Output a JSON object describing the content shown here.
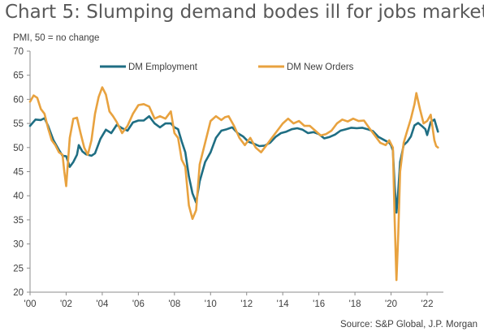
{
  "title": "Chart 5: Slumping demand bodes ill for jobs market",
  "source": "Source: S&P Global, J.P. Morgan",
  "chart_data": {
    "type": "line",
    "ylabel": "PMI, 50 = no change",
    "xlabel": "",
    "ylim": [
      20,
      70
    ],
    "yticks": [
      20,
      25,
      30,
      35,
      40,
      45,
      50,
      55,
      60,
      65,
      70
    ],
    "xlim": [
      2000,
      2022.9
    ],
    "xticks": [
      {
        "label": "'00",
        "x": 2000
      },
      {
        "label": "'02",
        "x": 2002
      },
      {
        "label": "'04",
        "x": 2004
      },
      {
        "label": "'06",
        "x": 2006
      },
      {
        "label": "'08",
        "x": 2008
      },
      {
        "label": "'10",
        "x": 2010
      },
      {
        "label": "'12",
        "x": 2012
      },
      {
        "label": "'14",
        "x": 2014
      },
      {
        "label": "'16",
        "x": 2016
      },
      {
        "label": "'18",
        "x": 2018
      },
      {
        "label": "'20",
        "x": 2020
      },
      {
        "label": "'22",
        "x": 2022
      }
    ],
    "grid": false,
    "legend": "top",
    "colors": {
      "employment": "#1f6e83",
      "orders": "#e8a23f",
      "axis": "#8c8c8c"
    },
    "series": [
      {
        "name": "DM Employment",
        "points": [
          [
            2000.0,
            54.5
          ],
          [
            2000.3,
            55.8
          ],
          [
            2000.6,
            55.7
          ],
          [
            2000.8,
            56.1
          ],
          [
            2001.0,
            54.5
          ],
          [
            2001.3,
            51.5
          ],
          [
            2001.6,
            49.5
          ],
          [
            2001.8,
            48.3
          ],
          [
            2002.0,
            48.2
          ],
          [
            2002.2,
            46.0
          ],
          [
            2002.4,
            47.0
          ],
          [
            2002.6,
            48.5
          ],
          [
            2002.7,
            50.5
          ],
          [
            2002.9,
            49.2
          ],
          [
            2003.1,
            48.6
          ],
          [
            2003.4,
            48.3
          ],
          [
            2003.6,
            48.8
          ],
          [
            2003.9,
            51.8
          ],
          [
            2004.2,
            53.7
          ],
          [
            2004.5,
            53.0
          ],
          [
            2004.8,
            54.7
          ],
          [
            2005.1,
            54.0
          ],
          [
            2005.4,
            53.5
          ],
          [
            2005.7,
            55.2
          ],
          [
            2006.0,
            55.6
          ],
          [
            2006.3,
            55.6
          ],
          [
            2006.6,
            56.5
          ],
          [
            2006.9,
            55.0
          ],
          [
            2007.2,
            54.2
          ],
          [
            2007.5,
            55.0
          ],
          [
            2007.8,
            55.0
          ],
          [
            2008.0,
            54.2
          ],
          [
            2008.2,
            53.8
          ],
          [
            2008.4,
            51.3
          ],
          [
            2008.6,
            49.0
          ],
          [
            2008.8,
            44.0
          ],
          [
            2009.0,
            40.5
          ],
          [
            2009.2,
            38.6
          ],
          [
            2009.4,
            43.0
          ],
          [
            2009.7,
            47.0
          ],
          [
            2010.0,
            49.0
          ],
          [
            2010.3,
            52.0
          ],
          [
            2010.6,
            53.5
          ],
          [
            2010.9,
            53.8
          ],
          [
            2011.2,
            54.2
          ],
          [
            2011.5,
            53.0
          ],
          [
            2011.8,
            52.3
          ],
          [
            2012.1,
            51.2
          ],
          [
            2012.4,
            50.8
          ],
          [
            2012.7,
            50.3
          ],
          [
            2013.0,
            50.4
          ],
          [
            2013.3,
            51.0
          ],
          [
            2013.6,
            52.2
          ],
          [
            2013.9,
            53.0
          ],
          [
            2014.2,
            53.3
          ],
          [
            2014.5,
            53.8
          ],
          [
            2014.8,
            54.0
          ],
          [
            2015.1,
            53.7
          ],
          [
            2015.4,
            53.0
          ],
          [
            2015.7,
            53.2
          ],
          [
            2016.0,
            52.8
          ],
          [
            2016.3,
            51.9
          ],
          [
            2016.6,
            52.2
          ],
          [
            2016.9,
            52.7
          ],
          [
            2017.2,
            53.5
          ],
          [
            2017.5,
            53.8
          ],
          [
            2017.8,
            54.1
          ],
          [
            2018.1,
            54.0
          ],
          [
            2018.4,
            54.1
          ],
          [
            2018.7,
            53.8
          ],
          [
            2019.0,
            53.4
          ],
          [
            2019.3,
            52.2
          ],
          [
            2019.6,
            51.6
          ],
          [
            2019.9,
            51.0
          ],
          [
            2020.0,
            50.5
          ],
          [
            2020.1,
            49.4
          ],
          [
            2020.2,
            42.0
          ],
          [
            2020.3,
            36.5
          ],
          [
            2020.4,
            41.0
          ],
          [
            2020.5,
            47.0
          ],
          [
            2020.7,
            50.5
          ],
          [
            2020.9,
            51.2
          ],
          [
            2021.1,
            52.3
          ],
          [
            2021.3,
            54.6
          ],
          [
            2021.5,
            55.1
          ],
          [
            2021.7,
            54.5
          ],
          [
            2021.9,
            53.8
          ],
          [
            2022.0,
            52.6
          ],
          [
            2022.2,
            55.3
          ],
          [
            2022.4,
            55.8
          ],
          [
            2022.6,
            53.3
          ]
        ]
      },
      {
        "name": "DM New Orders",
        "points": [
          [
            2000.0,
            59.5
          ],
          [
            2000.2,
            60.8
          ],
          [
            2000.4,
            60.3
          ],
          [
            2000.6,
            58.0
          ],
          [
            2000.8,
            57.0
          ],
          [
            2001.0,
            54.0
          ],
          [
            2001.2,
            51.5
          ],
          [
            2001.4,
            50.5
          ],
          [
            2001.6,
            49.0
          ],
          [
            2001.8,
            48.5
          ],
          [
            2001.9,
            45.0
          ],
          [
            2002.0,
            42.0
          ],
          [
            2002.2,
            52.0
          ],
          [
            2002.4,
            56.0
          ],
          [
            2002.6,
            56.2
          ],
          [
            2002.8,
            53.0
          ],
          [
            2003.0,
            50.0
          ],
          [
            2003.2,
            48.5
          ],
          [
            2003.4,
            51.5
          ],
          [
            2003.6,
            57.0
          ],
          [
            2003.8,
            60.5
          ],
          [
            2004.0,
            62.5
          ],
          [
            2004.2,
            61.0
          ],
          [
            2004.4,
            57.5
          ],
          [
            2004.6,
            56.5
          ],
          [
            2004.8,
            55.3
          ],
          [
            2005.1,
            53.0
          ],
          [
            2005.4,
            54.5
          ],
          [
            2005.7,
            57.0
          ],
          [
            2006.0,
            58.8
          ],
          [
            2006.3,
            59.0
          ],
          [
            2006.6,
            58.5
          ],
          [
            2006.9,
            56.0
          ],
          [
            2007.2,
            56.5
          ],
          [
            2007.5,
            56.0
          ],
          [
            2007.8,
            57.5
          ],
          [
            2008.0,
            53.0
          ],
          [
            2008.2,
            52.0
          ],
          [
            2008.4,
            47.5
          ],
          [
            2008.6,
            46.0
          ],
          [
            2008.8,
            38.0
          ],
          [
            2009.0,
            35.2
          ],
          [
            2009.2,
            37.0
          ],
          [
            2009.4,
            46.5
          ],
          [
            2009.7,
            51.0
          ],
          [
            2010.0,
            55.5
          ],
          [
            2010.3,
            56.5
          ],
          [
            2010.6,
            55.7
          ],
          [
            2010.8,
            56.3
          ],
          [
            2011.0,
            56.5
          ],
          [
            2011.3,
            54.5
          ],
          [
            2011.6,
            52.0
          ],
          [
            2011.9,
            50.5
          ],
          [
            2012.2,
            52.0
          ],
          [
            2012.5,
            50.0
          ],
          [
            2012.8,
            49.0
          ],
          [
            2013.1,
            50.5
          ],
          [
            2013.4,
            52.0
          ],
          [
            2013.7,
            53.5
          ],
          [
            2014.0,
            55.0
          ],
          [
            2014.3,
            56.0
          ],
          [
            2014.6,
            55.0
          ],
          [
            2014.9,
            55.5
          ],
          [
            2015.2,
            54.5
          ],
          [
            2015.5,
            54.5
          ],
          [
            2015.8,
            53.5
          ],
          [
            2016.1,
            52.5
          ],
          [
            2016.4,
            52.8
          ],
          [
            2016.7,
            53.5
          ],
          [
            2017.0,
            55.0
          ],
          [
            2017.3,
            55.8
          ],
          [
            2017.6,
            55.4
          ],
          [
            2017.9,
            56.0
          ],
          [
            2018.2,
            55.5
          ],
          [
            2018.5,
            55.6
          ],
          [
            2018.8,
            54.0
          ],
          [
            2019.1,
            52.5
          ],
          [
            2019.4,
            51.0
          ],
          [
            2019.7,
            50.5
          ],
          [
            2019.9,
            51.5
          ],
          [
            2020.1,
            50.0
          ],
          [
            2020.2,
            35.0
          ],
          [
            2020.3,
            22.5
          ],
          [
            2020.4,
            32.0
          ],
          [
            2020.5,
            45.0
          ],
          [
            2020.7,
            51.0
          ],
          [
            2020.9,
            53.5
          ],
          [
            2021.1,
            56.0
          ],
          [
            2021.3,
            59.0
          ],
          [
            2021.4,
            61.3
          ],
          [
            2021.6,
            58.0
          ],
          [
            2021.8,
            55.0
          ],
          [
            2022.0,
            55.5
          ],
          [
            2022.2,
            56.8
          ],
          [
            2022.4,
            51.5
          ],
          [
            2022.5,
            50.3
          ],
          [
            2022.6,
            50.0
          ]
        ]
      }
    ]
  }
}
